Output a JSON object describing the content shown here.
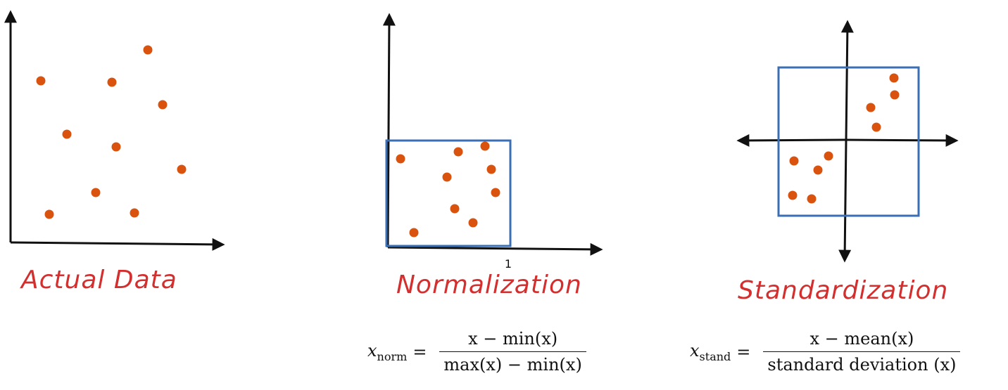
{
  "panels": {
    "actual": {
      "caption": "Actual Data"
    },
    "normalization": {
      "caption": "Normalization",
      "tick_label": "1"
    },
    "standardization": {
      "caption": "Standardization"
    }
  },
  "formulas": {
    "norm": {
      "lhs": "x",
      "lhs_sub": "norm",
      "equals": "=",
      "numerator": "x − min(x)",
      "denominator": "max(x) − min(x)"
    },
    "stand": {
      "lhs": "x",
      "lhs_sub": "stand",
      "equals": "=",
      "numerator": "x − mean(x)",
      "denominator": "standard deviation (x)"
    }
  },
  "colors": {
    "point": "#d9530f",
    "box": "#3a6fb6",
    "axis": "#111111",
    "caption": "#d32f2f"
  }
}
